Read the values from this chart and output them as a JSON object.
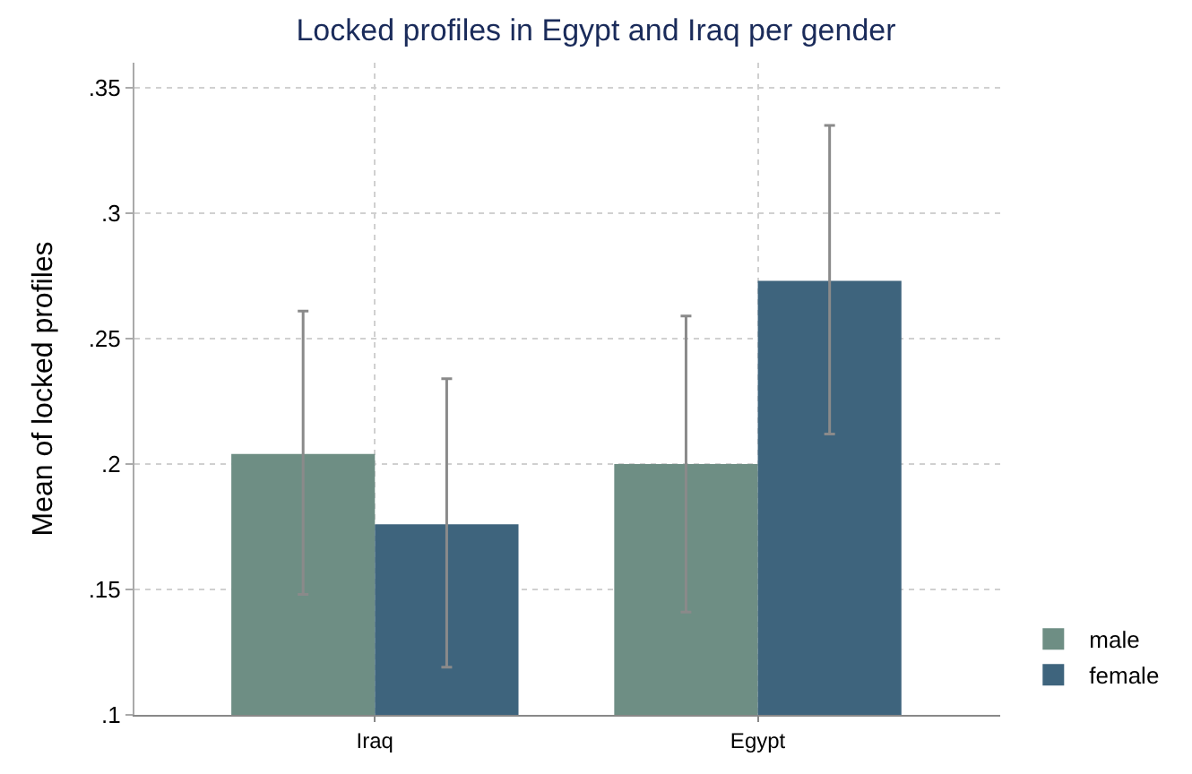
{
  "chart_data": {
    "type": "bar",
    "title": "Locked profiles in Egypt and Iraq per gender",
    "ylabel": "Mean of locked profiles",
    "categories": [
      "Iraq",
      "Egypt"
    ],
    "series": [
      {
        "name": "male",
        "color": "#6e8e84",
        "values": [
          0.204,
          0.2
        ],
        "errors": [
          [
            0.148,
            0.261
          ],
          [
            0.141,
            0.259
          ]
        ]
      },
      {
        "name": "female",
        "color": "#3e647d",
        "values": [
          0.176,
          0.273
        ],
        "errors": [
          [
            0.119,
            0.234
          ],
          [
            0.212,
            0.335
          ]
        ]
      }
    ],
    "ylim": [
      0.1,
      0.36
    ],
    "yticks": [
      {
        "value": 0.1,
        "label": ".1"
      },
      {
        "value": 0.15,
        "label": ".15"
      },
      {
        "value": 0.2,
        "label": ".2"
      },
      {
        "value": 0.25,
        "label": ".25"
      },
      {
        "value": 0.3,
        "label": ".3"
      },
      {
        "value": 0.35,
        "label": ".35"
      }
    ],
    "grid": true,
    "legend": "bottom right"
  }
}
